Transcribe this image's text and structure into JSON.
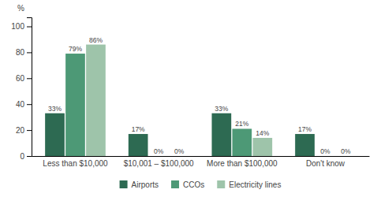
{
  "chart_data": {
    "type": "bar",
    "ylabel": "%",
    "categories": [
      "Less than $10,000",
      "$10,001 – $100,000",
      "More than $100,000",
      "Don't know"
    ],
    "series": [
      {
        "name": "Airports",
        "color": "#2d6a52",
        "values": [
          33,
          17,
          33,
          17
        ],
        "value_labels": [
          "33%",
          "17%",
          "33%",
          "17%"
        ]
      },
      {
        "name": "CCOs",
        "color": "#4d9976",
        "values": [
          79,
          0,
          21,
          0
        ],
        "value_labels": [
          "79%",
          "0%",
          "21%",
          "0%"
        ]
      },
      {
        "name": "Electricity lines",
        "color": "#9ec4aa",
        "values": [
          86,
          0,
          14,
          0
        ],
        "value_labels": [
          "86%",
          "0%",
          "14%",
          "0%"
        ]
      }
    ],
    "ylim": [
      0,
      107
    ],
    "yticks": [
      0,
      20,
      40,
      60,
      80,
      100
    ],
    "data_labels": true,
    "grid": false,
    "legend": "bottom"
  }
}
